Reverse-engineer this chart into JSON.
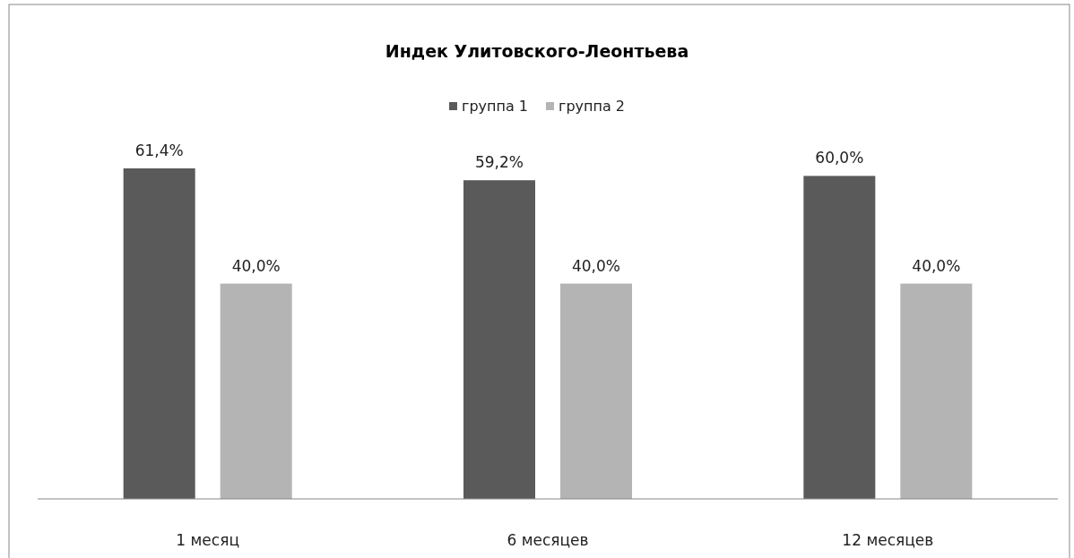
{
  "chart_data": {
    "type": "bar",
    "title": "Индек Улитовского-Леонтьева",
    "categories": [
      "1 месяц",
      "6 месяцев",
      "12 месяцев"
    ],
    "series": [
      {
        "name": "группа 1",
        "color": "#5a5a5a",
        "values": [
          61.4,
          59.2,
          60.0
        ],
        "value_labels": [
          "61,4%",
          "59,2%",
          "60,0%"
        ]
      },
      {
        "name": "группа 2",
        "color": "#b4b4b4",
        "values": [
          40.0,
          40.0,
          40.0
        ],
        "value_labels": [
          "40,0%",
          "40,0%",
          "40,0%"
        ]
      }
    ],
    "legend": "top"
  }
}
